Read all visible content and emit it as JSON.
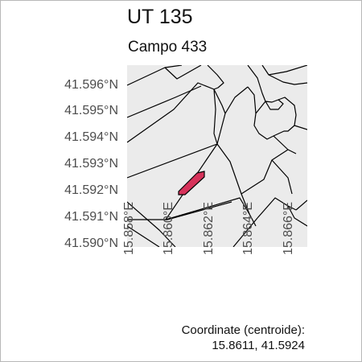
{
  "title": "UT 135",
  "subtitle": "Campo 433",
  "y_ticks": [
    "41.596°N",
    "41.595°N",
    "41.594°N",
    "41.593°N",
    "41.592°N",
    "41.591°N",
    "41.590°N"
  ],
  "x_ticks": [
    "15.858°E",
    "15.860°E",
    "15.862°E",
    "15.864°E",
    "15.866°E"
  ],
  "caption_line1": "Coordinate (centroide):",
  "caption_line2": "15.8611, 41.5924",
  "colors": {
    "map_background": "#ebebeb",
    "parcel_border": "#000000",
    "highlight_fill": "#d6325a"
  },
  "highlight": {
    "lon": 15.8611,
    "lat": 41.5924
  }
}
